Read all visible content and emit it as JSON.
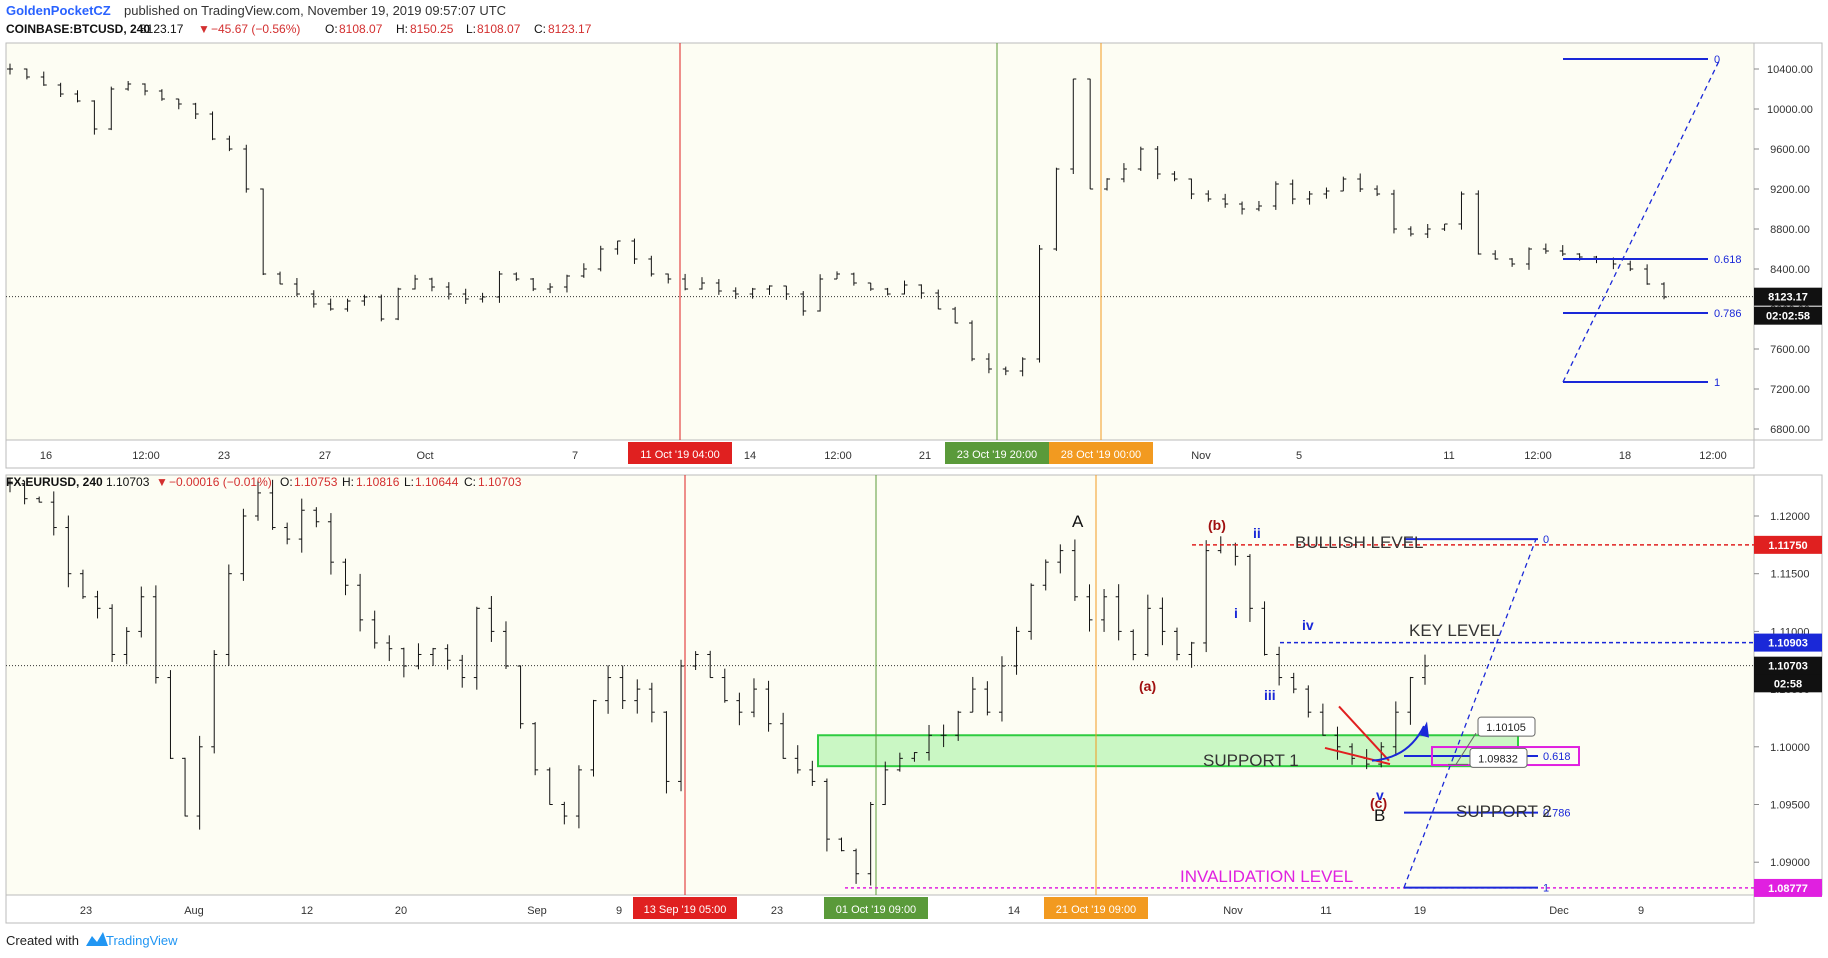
{
  "header": {
    "author": "GoldenPocketCZ",
    "published_text": "published on TradingView.com, November 19, 2019 09:57:07 UTC"
  },
  "footer": {
    "created_with": "Created with",
    "brand": "TradingView"
  },
  "colors": {
    "background": "#fdfdf3",
    "candle": "#111111",
    "red_marker": "#e02020",
    "green_marker": "#5a9a3a",
    "orange_marker": "#f29a20",
    "fib_blue": "#1a28d8",
    "support_zone": "#8cf08c",
    "magenta": "#e020e0",
    "dark_red": "#a01010"
  },
  "chart_data": [
    {
      "type": "candlestick",
      "symbol_header": {
        "symbol": "COINBASE:BTCUSD, 240",
        "last": "8123.17",
        "change": "−45.67 (−0.56%)",
        "O": "8108.07",
        "H": "8150.25",
        "L": "8108.07",
        "C": "8123.17"
      },
      "y_ticks": [
        "10400.00",
        "10000.00",
        "9600.00",
        "9200.00",
        "8800.00",
        "8400.00",
        "8000.00",
        "7600.00",
        "7200.00",
        "6800.00"
      ],
      "x_ticks": [
        "16",
        "12:00",
        "23",
        "27",
        "Oct",
        "7",
        "14",
        "12:00",
        "21",
        "Nov",
        "5",
        "11",
        "12:00",
        "18",
        "12:00"
      ],
      "current_price_label": "8123.17",
      "countdown_label": "02:02:58",
      "vertical_markers": [
        {
          "label": "11 Oct '19   04:00",
          "color": "red"
        },
        {
          "label": "23 Oct '19   20:00",
          "color": "green"
        },
        {
          "label": "28 Oct '19   00:00",
          "color": "orange"
        }
      ],
      "fib_levels": [
        {
          "label": "0",
          "price": 10500
        },
        {
          "label": "0.618",
          "price": 8500
        },
        {
          "label": "0.786",
          "price": 7960
        },
        {
          "label": "1",
          "price": 7270
        }
      ],
      "series_close": [
        10400,
        10320,
        10240,
        10150,
        10080,
        9800,
        10200,
        10250,
        10180,
        10100,
        10050,
        9950,
        9700,
        9600,
        9200,
        8350,
        8250,
        8150,
        8050,
        8000,
        8080,
        8120,
        7900,
        8200,
        8300,
        8220,
        8150,
        8100,
        8120,
        8350,
        8300,
        8200,
        8220,
        8330,
        8400,
        8600,
        8680,
        8500,
        8350,
        8300,
        8200,
        8260,
        8180,
        8150,
        8200,
        8230,
        8150,
        7980,
        8300,
        8350,
        8260,
        8200,
        8150,
        8240,
        8160,
        8000,
        7860,
        7500,
        7400,
        7380,
        7500,
        8600,
        9400,
        10300,
        9200,
        9300,
        9400,
        9600,
        9350,
        9300,
        9150,
        9100,
        9050,
        9000,
        9030,
        9250,
        9100,
        9150,
        9180,
        9300,
        9200,
        9150,
        8800,
        8750,
        8800,
        8850,
        9150,
        8550,
        8500,
        8450,
        8600,
        8580,
        8550,
        8520,
        8500,
        8450,
        8400,
        8250,
        8120
      ]
    },
    {
      "type": "candlestick",
      "symbol_header": {
        "symbol": "FX:EURUSD, 240",
        "last": "1.10703",
        "change": "−0.00016 (−0.01%)",
        "O": "1.10753",
        "H": "1.10816",
        "L": "1.10644",
        "C": "1.10703"
      },
      "y_ticks": [
        "1.12000",
        "1.11500",
        "1.11000",
        "1.10500",
        "1.10000",
        "1.09500",
        "1.09000"
      ],
      "x_ticks": [
        "23",
        "Aug",
        "12",
        "20",
        "Sep",
        "9",
        "23",
        "14",
        "Nov",
        "11",
        "19",
        "Dec",
        "9"
      ],
      "price_labels": [
        {
          "text": "1.11750",
          "price": 1.1175
        },
        {
          "text": "1.10903",
          "price": 1.10903
        },
        {
          "text": "1.10703",
          "price": 1.10703
        },
        {
          "text": "02:58",
          "price": 1.1055
        },
        {
          "text": "1.08777",
          "price": 1.08777
        }
      ],
      "vertical_markers": [
        {
          "label": "13 Sep '19   05:00",
          "color": "red"
        },
        {
          "label": "01 Oct '19   09:00",
          "color": "green"
        },
        {
          "label": "21 Oct '19   09:00",
          "color": "orange"
        }
      ],
      "annotations": {
        "bullish_level": "BULLISH LEVEL",
        "key_level": "KEY LEVEL",
        "support_1": "SUPPORT 1",
        "support_2": "SUPPORT 2",
        "invalidation_level": "INVALIDATION LEVEL",
        "wave_A": "A",
        "wave_B": "B",
        "wave_a": "(a)",
        "wave_b": "(b)",
        "wave_c": "(c)",
        "wave_i": "i",
        "wave_ii": "ii",
        "wave_iii": "iii",
        "wave_iv": "iv",
        "wave_v": "v",
        "callout_1": "1.10105",
        "callout_2": "1.09832"
      },
      "fib_levels": [
        {
          "label": "0",
          "price": 1.118
        },
        {
          "label": "0.618",
          "price": 1.0992
        },
        {
          "label": "0.786",
          "price": 1.0943
        },
        {
          "label": "1",
          "price": 1.0878
        }
      ],
      "series_close": [
        1.1228,
        1.1215,
        1.1212,
        1.119,
        1.115,
        1.113,
        1.112,
        1.108,
        1.11,
        1.113,
        1.106,
        1.099,
        1.094,
        1.1,
        1.108,
        1.115,
        1.12,
        1.122,
        1.119,
        1.118,
        1.1205,
        1.1195,
        1.116,
        1.114,
        1.111,
        1.109,
        1.1085,
        1.107,
        1.108,
        1.1085,
        1.1075,
        1.106,
        1.112,
        1.11,
        1.107,
        1.102,
        1.098,
        1.095,
        1.094,
        1.098,
        1.104,
        1.106,
        1.104,
        1.105,
        1.103,
        1.097,
        1.107,
        1.108,
        1.106,
        1.104,
        1.103,
        1.105,
        1.102,
        1.099,
        1.098,
        1.097,
        1.092,
        1.091,
        1.089,
        1.095,
        1.098,
        1.099,
        1.0995,
        1.101,
        1.101,
        1.103,
        1.105,
        1.103,
        1.107,
        1.11,
        1.114,
        1.116,
        1.117,
        1.113,
        1.111,
        1.113,
        1.11,
        1.108,
        1.112,
        1.11,
        1.108,
        1.109,
        1.117,
        1.1175,
        1.1165,
        1.112,
        1.108,
        1.106,
        1.105,
        1.103,
        1.101,
        1.1,
        1.099,
        1.0985,
        1.1,
        1.103,
        1.106,
        1.107
      ]
    }
  ]
}
